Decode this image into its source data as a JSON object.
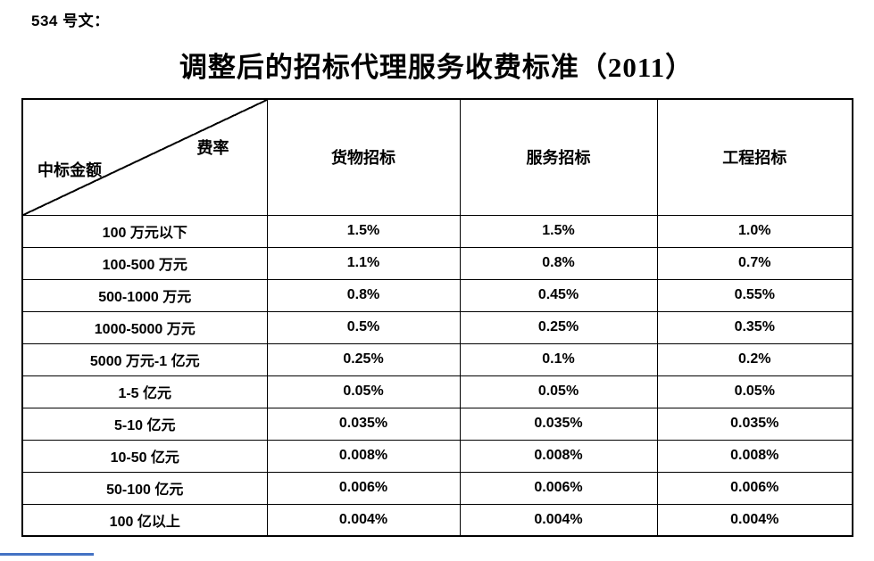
{
  "doc": {
    "label": "534 号文：",
    "title": "调整后的招标代理服务收费标准（2011）"
  },
  "table": {
    "corner": {
      "top_right": "费率",
      "bottom_left": "中标金额"
    },
    "columns": {
      "goods": "货物招标",
      "services": "服务招标",
      "engineering": "工程招标"
    },
    "rows": [
      {
        "range": "100 万元以下",
        "goods": "1.5%",
        "services": "1.5%",
        "engineering": "1.0%"
      },
      {
        "range": "100-500 万元",
        "goods": "1.1%",
        "services": "0.8%",
        "engineering": "0.7%"
      },
      {
        "range": "500-1000 万元",
        "goods": "0.8%",
        "services": "0.45%",
        "engineering": "0.55%"
      },
      {
        "range": "1000-5000 万元",
        "goods": "0.5%",
        "services": "0.25%",
        "engineering": "0.35%"
      },
      {
        "range": "5000 万元-1 亿元",
        "goods": "0.25%",
        "services": "0.1%",
        "engineering": "0.2%"
      },
      {
        "range": "1-5 亿元",
        "goods": "0.05%",
        "services": "0.05%",
        "engineering": "0.05%"
      },
      {
        "range": "5-10 亿元",
        "goods": "0.035%",
        "services": "0.035%",
        "engineering": "0.035%"
      },
      {
        "range": "10-50 亿元",
        "goods": "0.008%",
        "services": "0.008%",
        "engineering": "0.008%"
      },
      {
        "range": "50-100 亿元",
        "goods": "0.006%",
        "services": "0.006%",
        "engineering": "0.006%"
      },
      {
        "range": "100 亿以上",
        "goods": "0.004%",
        "services": "0.004%",
        "engineering": "0.004%"
      }
    ]
  },
  "colors": {
    "text": "#000000",
    "border": "#000000",
    "accent_line": "#4472c4"
  }
}
